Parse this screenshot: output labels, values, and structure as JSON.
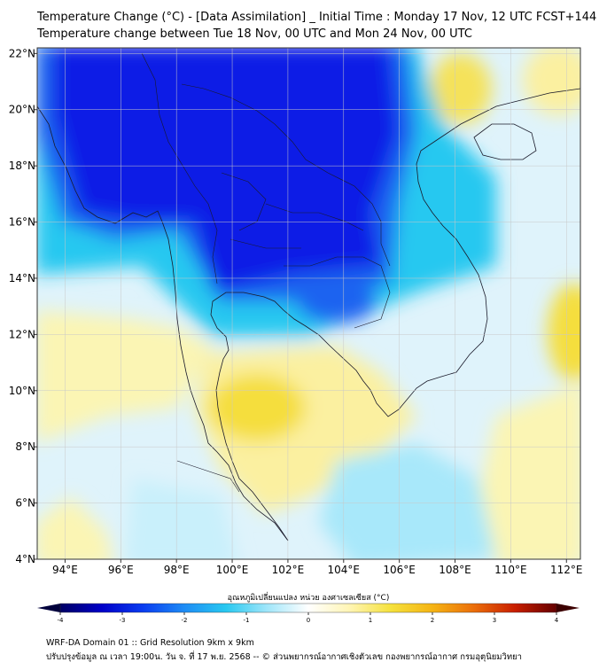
{
  "title_line1": "Temperature Change (°C) - [Data Assimilation] _ Initial Time : Monday 17 Nov, 12 UTC FCST+144",
  "title_line2": "Temperature change between Tue 18 Nov, 00 UTC and Mon 24 Nov, 00 UTC",
  "map": {
    "lon_ticks": [
      {
        "value": 94,
        "label": "94°E"
      },
      {
        "value": 96,
        "label": "96°E"
      },
      {
        "value": 98,
        "label": "98°E"
      },
      {
        "value": 100,
        "label": "100°E"
      },
      {
        "value": 102,
        "label": "102°E"
      },
      {
        "value": 104,
        "label": "104°E"
      },
      {
        "value": 106,
        "label": "106°E"
      },
      {
        "value": 108,
        "label": "108°E"
      },
      {
        "value": 110,
        "label": "110°E"
      },
      {
        "value": 112,
        "label": "112°E"
      }
    ],
    "lat_ticks": [
      {
        "value": 22,
        "label": "22°N"
      },
      {
        "value": 20,
        "label": "20°N"
      },
      {
        "value": 18,
        "label": "18°N"
      },
      {
        "value": 16,
        "label": "16°N"
      },
      {
        "value": 14,
        "label": "14°N"
      },
      {
        "value": 12,
        "label": "12°N"
      },
      {
        "value": 10,
        "label": "10°N"
      },
      {
        "value": 8,
        "label": "8°N"
      },
      {
        "value": 6,
        "label": "6°N"
      },
      {
        "value": 4,
        "label": "4°N"
      }
    ],
    "colors": {
      "strong_cooling": "#0a1ee6",
      "cooling": "#1e64f0",
      "mild_cooling": "#28c8f0",
      "slight_cooling": "#a8e8fa",
      "neutral": "#f2f8fc",
      "slight_warming": "#fbf5b4",
      "warming": "#f5de3c"
    }
  },
  "colorbar": {
    "title": "อุณหภูมิเปลี่ยนแปลง หน่วย องศาเซลเซียส (°C)",
    "ticks": [
      {
        "value": -4,
        "label": "-4"
      },
      {
        "value": -3,
        "label": "-3"
      },
      {
        "value": -2,
        "label": "-2"
      },
      {
        "value": -1,
        "label": "-1"
      },
      {
        "value": 0,
        "label": "0"
      },
      {
        "value": 1,
        "label": "1"
      },
      {
        "value": 2,
        "label": "2"
      },
      {
        "value": 3,
        "label": "3"
      },
      {
        "value": 4,
        "label": "4"
      }
    ],
    "colors": [
      "#000064",
      "#0000c8",
      "#0a3cf0",
      "#1e8cf5",
      "#28c8f0",
      "#a0e6fa",
      "#ffffff",
      "#fff5b4",
      "#f5e13c",
      "#f5b414",
      "#eb6e0a",
      "#c81e00",
      "#640000"
    ]
  },
  "footer_line1": "WRF-DA Domain 01 :: Grid Resolution 9km x 9km",
  "footer_line2": "ปรับปรุงข้อมูล ณ เวลา 19:00น. วัน จ. ที่ 17 พ.ย. 2568 -- © ส่วนพยากรณ์อากาศเชิงตัวเลข กองพยากรณ์อากาศ กรมอุตุนิยมวิทยา"
}
